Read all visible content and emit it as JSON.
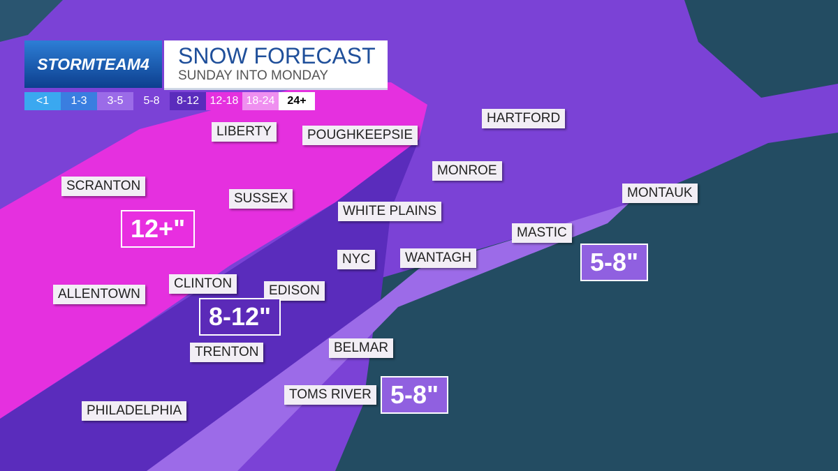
{
  "header": {
    "brand": "STORMTEAM4",
    "title": "SNOW FORECAST",
    "subtitle": "SUNDAY INTO MONDAY"
  },
  "legend": [
    "<1",
    "1-3",
    "3-5",
    "5-8",
    "8-12",
    "12-18",
    "18-24",
    "24+"
  ],
  "cities": [
    "LIBERTY",
    "POUGHKEEPSIE",
    "HARTFORD",
    "MONROE",
    "SCRANTON",
    "SUSSEX",
    "WHITE PLAINS",
    "MONTAUK",
    "MASTIC",
    "NYC",
    "WANTAGH",
    "CLINTON",
    "EDISON",
    "ALLENTOWN",
    "TRENTON",
    "BELMAR",
    "TOMS RIVER",
    "PHILADELPHIA"
  ],
  "amounts": [
    "12+\"",
    "8-12\"",
    "5-8\"",
    "5-8\""
  ]
}
